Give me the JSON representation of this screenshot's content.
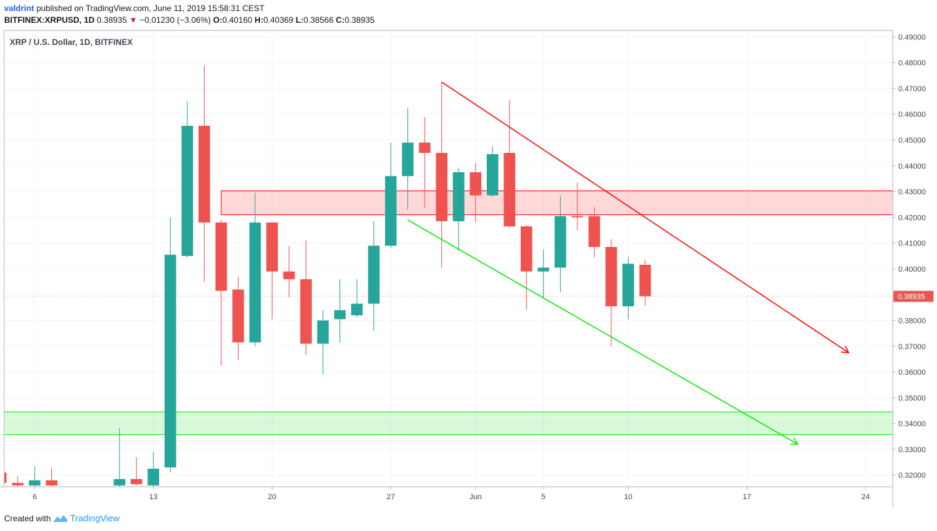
{
  "header": {
    "author": "valdrint",
    "published_text": "published on TradingView.com, June 11, 2019 15:58:31 CEST",
    "symbol": "BITFINEX:XRPUSD, 1D",
    "last": "0.38935",
    "arrow": "▼",
    "change": "−0.01230 (−3.06%)",
    "o_label": "O:",
    "o_value": "0.40160",
    "h_label": "H:",
    "h_value": "0.40369",
    "l_label": "L:",
    "l_value": "0.38566",
    "c_label": "C:",
    "c_value": "0.38935"
  },
  "footer": {
    "created_with": "Created with",
    "brand": "TradingView"
  },
  "colors": {
    "up": "#26a69a",
    "down": "#ef5350",
    "resistance": "#ff0000",
    "support": "#00ee00",
    "price_tag": "#ef5350"
  },
  "chart_data": {
    "type": "candlestick",
    "title": "XRP / U.S. Dollar, 1D, BITFINEX",
    "ylim": [
      0.3155,
      0.4925
    ],
    "y_ticks": [
      "0.32000",
      "0.33000",
      "0.34000",
      "0.35000",
      "0.36000",
      "0.37000",
      "0.38000",
      "0.39000",
      "0.40000",
      "0.41000",
      "0.42000",
      "0.43000",
      "0.44000",
      "0.45000",
      "0.46000",
      "0.47000",
      "0.48000",
      "0.49000"
    ],
    "x_ticks": [
      {
        "label": "6",
        "day": 6
      },
      {
        "label": "13",
        "day": 13
      },
      {
        "label": "20",
        "day": 20
      },
      {
        "label": "27",
        "day": 27
      },
      {
        "label": "Jun",
        "day": 32
      },
      {
        "label": "5",
        "day": 36
      },
      {
        "label": "10",
        "day": 41
      },
      {
        "label": "17",
        "day": 48
      },
      {
        "label": "24",
        "day": 55
      }
    ],
    "x_range_days": [
      4.2,
      56.6
    ],
    "last_price": "0.38935",
    "candles": [
      {
        "day": 4,
        "o": 0.321,
        "h": 0.3325,
        "l": 0.317,
        "c": 0.317
      },
      {
        "day": 5,
        "o": 0.317,
        "h": 0.3195,
        "l": 0.315,
        "c": 0.316
      },
      {
        "day": 6,
        "o": 0.316,
        "h": 0.3235,
        "l": 0.315,
        "c": 0.318
      },
      {
        "day": 7,
        "o": 0.318,
        "h": 0.323,
        "l": 0.315,
        "c": 0.316
      },
      {
        "day": 11,
        "o": 0.316,
        "h": 0.3382,
        "l": 0.315,
        "c": 0.3185
      },
      {
        "day": 12,
        "o": 0.3185,
        "h": 0.327,
        "l": 0.316,
        "c": 0.3165
      },
      {
        "day": 13,
        "o": 0.316,
        "h": 0.329,
        "l": 0.314,
        "c": 0.3225
      },
      {
        "day": 14,
        "o": 0.323,
        "h": 0.42,
        "l": 0.321,
        "c": 0.4055
      },
      {
        "day": 15,
        "o": 0.405,
        "h": 0.465,
        "l": 0.4045,
        "c": 0.4555
      },
      {
        "day": 16,
        "o": 0.4555,
        "h": 0.479,
        "l": 0.395,
        "c": 0.418
      },
      {
        "day": 17,
        "o": 0.418,
        "h": 0.419,
        "l": 0.3625,
        "c": 0.3915
      },
      {
        "day": 18,
        "o": 0.392,
        "h": 0.397,
        "l": 0.3645,
        "c": 0.3715
      },
      {
        "day": 19,
        "o": 0.3715,
        "h": 0.4295,
        "l": 0.37,
        "c": 0.418
      },
      {
        "day": 20,
        "o": 0.418,
        "h": 0.418,
        "l": 0.3805,
        "c": 0.399
      },
      {
        "day": 21,
        "o": 0.399,
        "h": 0.409,
        "l": 0.389,
        "c": 0.396
      },
      {
        "day": 22,
        "o": 0.396,
        "h": 0.411,
        "l": 0.3665,
        "c": 0.371
      },
      {
        "day": 23,
        "o": 0.371,
        "h": 0.384,
        "l": 0.359,
        "c": 0.38
      },
      {
        "day": 24,
        "o": 0.3805,
        "h": 0.396,
        "l": 0.3715,
        "c": 0.384
      },
      {
        "day": 25,
        "o": 0.382,
        "h": 0.396,
        "l": 0.381,
        "c": 0.3865
      },
      {
        "day": 26,
        "o": 0.3865,
        "h": 0.4185,
        "l": 0.376,
        "c": 0.409
      },
      {
        "day": 27,
        "o": 0.409,
        "h": 0.449,
        "l": 0.408,
        "c": 0.436
      },
      {
        "day": 28,
        "o": 0.436,
        "h": 0.4625,
        "l": 0.423,
        "c": 0.449
      },
      {
        "day": 29,
        "o": 0.449,
        "h": 0.459,
        "l": 0.4235,
        "c": 0.445
      },
      {
        "day": 30,
        "o": 0.445,
        "h": 0.4725,
        "l": 0.4005,
        "c": 0.4185
      },
      {
        "day": 31,
        "o": 0.4185,
        "h": 0.439,
        "l": 0.407,
        "c": 0.4375
      },
      {
        "day": 32,
        "o": 0.4375,
        "h": 0.441,
        "l": 0.418,
        "c": 0.4285
      },
      {
        "day": 33,
        "o": 0.4285,
        "h": 0.4475,
        "l": 0.428,
        "c": 0.4445
      },
      {
        "day": 34,
        "o": 0.445,
        "h": 0.4655,
        "l": 0.416,
        "c": 0.4165
      },
      {
        "day": 35,
        "o": 0.4165,
        "h": 0.417,
        "l": 0.384,
        "c": 0.399
      },
      {
        "day": 36,
        "o": 0.399,
        "h": 0.4075,
        "l": 0.3885,
        "c": 0.4005
      },
      {
        "day": 37,
        "o": 0.4005,
        "h": 0.4285,
        "l": 0.391,
        "c": 0.4205
      },
      {
        "day": 38,
        "o": 0.4205,
        "h": 0.4335,
        "l": 0.415,
        "c": 0.42
      },
      {
        "day": 39,
        "o": 0.4205,
        "h": 0.424,
        "l": 0.4045,
        "c": 0.4085
      },
      {
        "day": 40,
        "o": 0.4085,
        "h": 0.4115,
        "l": 0.37,
        "c": 0.3855
      },
      {
        "day": 41,
        "o": 0.3855,
        "h": 0.4045,
        "l": 0.3805,
        "c": 0.402
      },
      {
        "day": 42,
        "o": 0.4016,
        "h": 0.4037,
        "l": 0.3857,
        "c": 0.3894
      }
    ],
    "zones": [
      {
        "name": "resistance",
        "from_day": 17,
        "y1": 0.421,
        "y2": 0.4303
      },
      {
        "name": "support",
        "from_day": 4.2,
        "y1": 0.3357,
        "y2": 0.3445
      }
    ],
    "trendlines": [
      {
        "name": "resistance",
        "from": {
          "day": 30,
          "y": 0.4725
        },
        "to": {
          "day": 54,
          "y": 0.3675
        }
      },
      {
        "name": "support",
        "from": {
          "day": 28,
          "y": 0.419
        },
        "to": {
          "day": 51,
          "y": 0.332
        }
      }
    ]
  }
}
